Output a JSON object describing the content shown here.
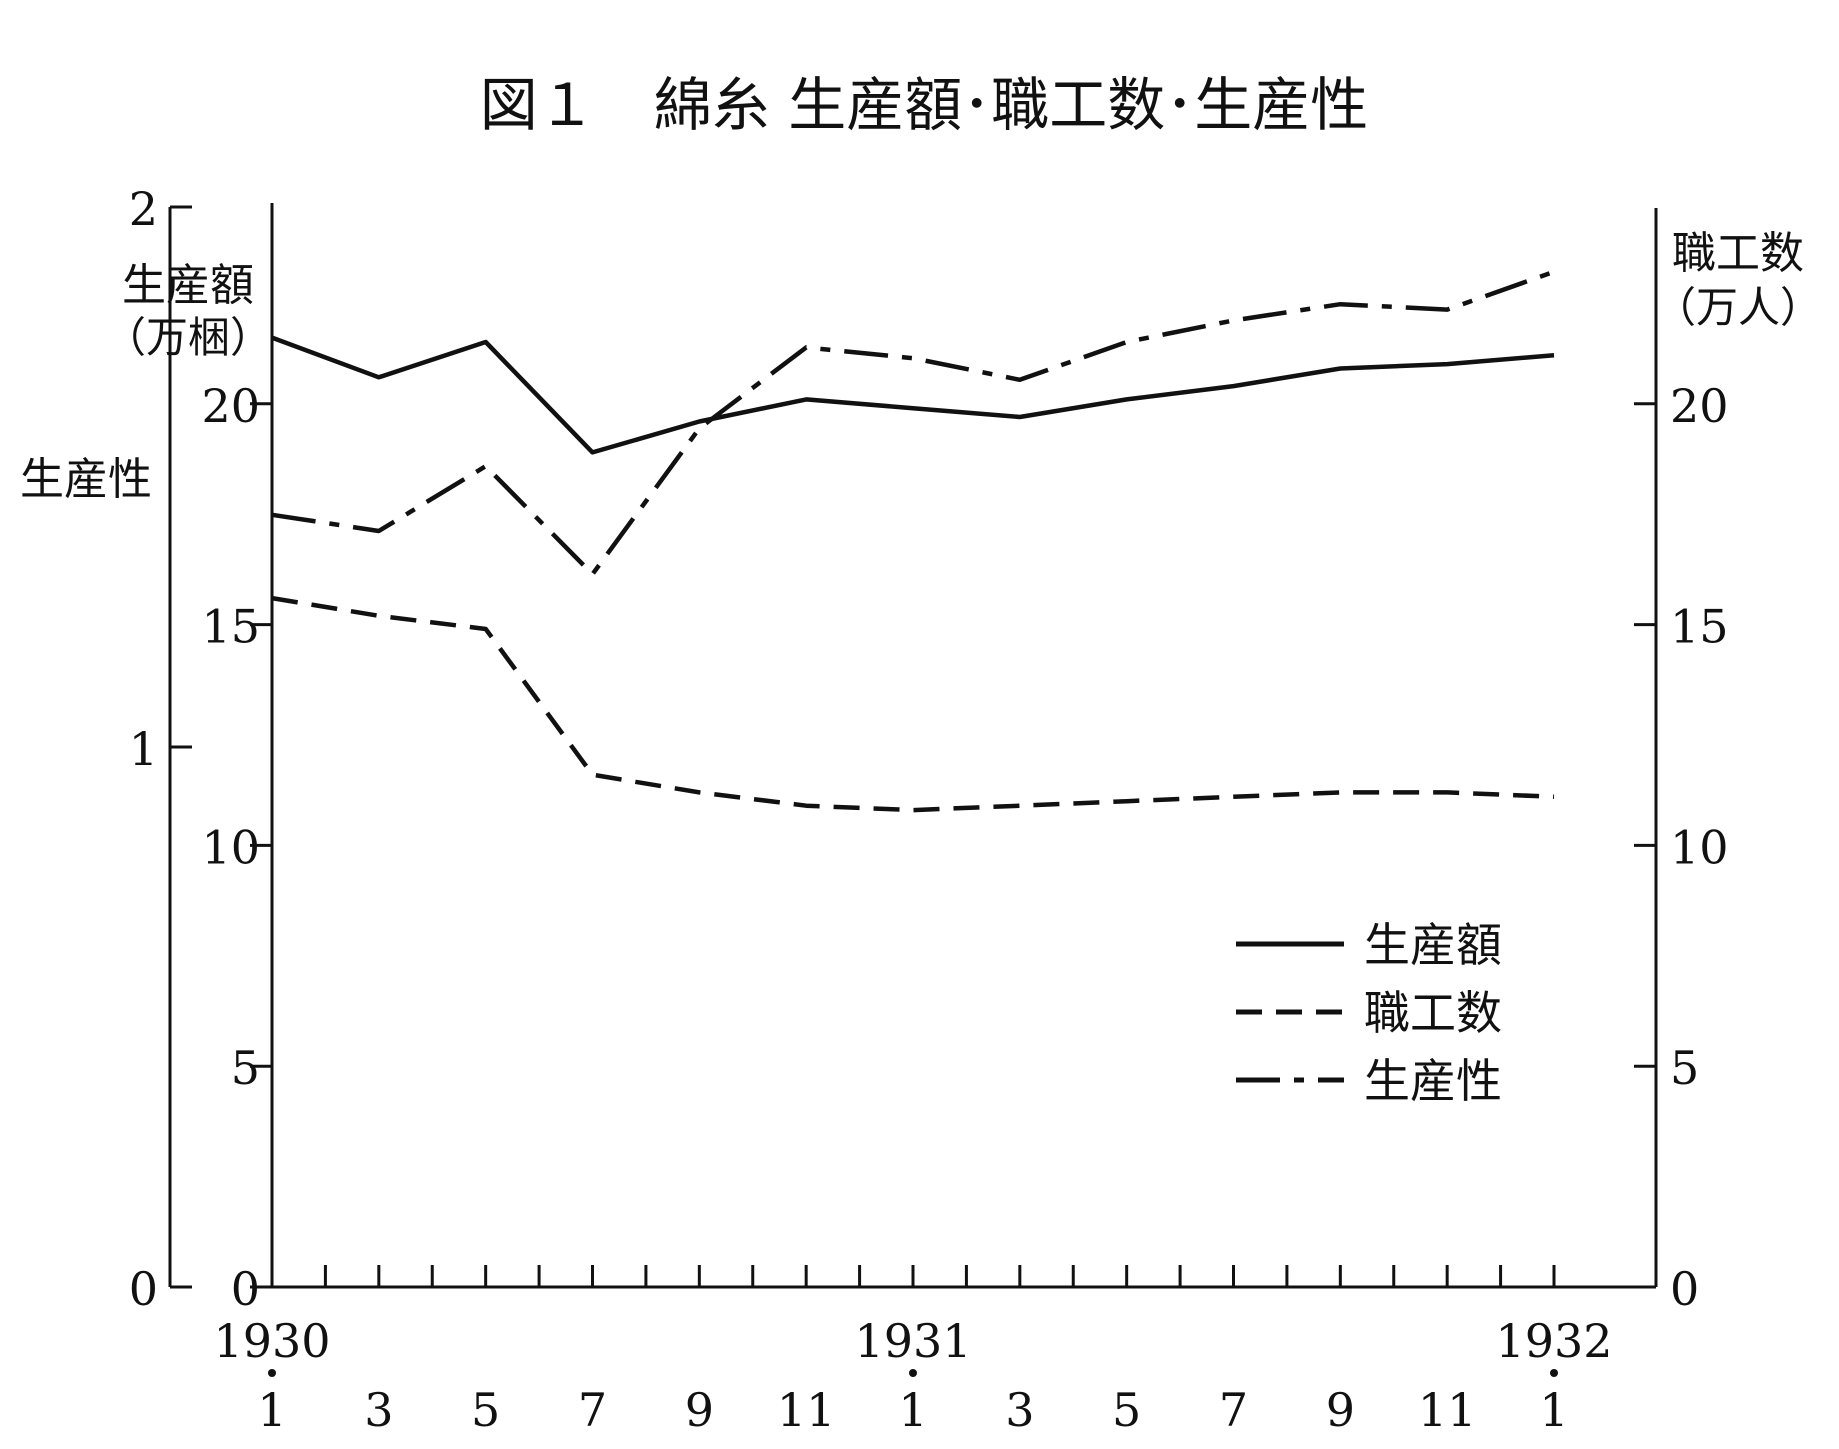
{
  "chart_data": {
    "type": "line",
    "title": "図１　綿糸 生産額･職工数･生産性",
    "left_axis_label_a": "生産額",
    "left_axis_label_a_unit": "（万梱）",
    "left_axis_label_b": "生産性",
    "right_axis_label": "職工数",
    "right_axis_label_unit": "（万人）",
    "left_outer_ticks": [
      "0",
      "1",
      "2"
    ],
    "left_outer_range": [
      0,
      2
    ],
    "left_inner_ticks": [
      "0",
      "5",
      "10",
      "15",
      "20"
    ],
    "left_inner_range": [
      0,
      25
    ],
    "right_ticks": [
      "0",
      "5",
      "10",
      "15",
      "20"
    ],
    "right_range": [
      0,
      25
    ],
    "x_tick_labels": [
      "1",
      "3",
      "5",
      "7",
      "9",
      "11",
      "1",
      "3",
      "5",
      "7",
      "9",
      "11",
      "1"
    ],
    "x_year_labels": [
      {
        "label": "1930",
        "month_index": 0
      },
      {
        "label": "1931",
        "month_index": 12
      },
      {
        "label": "1932",
        "month_index": 24
      }
    ],
    "x_range": [
      0,
      25
    ],
    "grid": false,
    "legend_position": "lower-right",
    "series": [
      {
        "name": "生産額",
        "style": "solid",
        "axis": "left_inner",
        "x": [
          0,
          2,
          4,
          6,
          8,
          10,
          12,
          14,
          16,
          18,
          20,
          22,
          24
        ],
        "values": [
          21.5,
          20.6,
          21.4,
          18.9,
          19.6,
          20.1,
          19.9,
          19.7,
          20.1,
          20.4,
          20.8,
          20.9,
          21.1
        ]
      },
      {
        "name": "職工数",
        "style": "dashed",
        "axis": "right",
        "x": [
          0,
          2,
          4,
          6,
          8,
          10,
          12,
          14,
          16,
          18,
          20,
          22,
          24
        ],
        "values": [
          15.6,
          15.2,
          14.9,
          11.6,
          11.2,
          10.9,
          10.8,
          10.9,
          11.0,
          11.1,
          11.2,
          11.2,
          11.1
        ]
      },
      {
        "name": "生産性",
        "style": "dashdot",
        "axis": "left_outer",
        "x": [
          0,
          2,
          4,
          6,
          8,
          10,
          12,
          14,
          16,
          18,
          20,
          22,
          24
        ],
        "values": [
          1.43,
          1.4,
          1.52,
          1.32,
          1.59,
          1.74,
          1.72,
          1.68,
          1.75,
          1.79,
          1.82,
          1.81,
          1.88
        ]
      }
    ]
  }
}
